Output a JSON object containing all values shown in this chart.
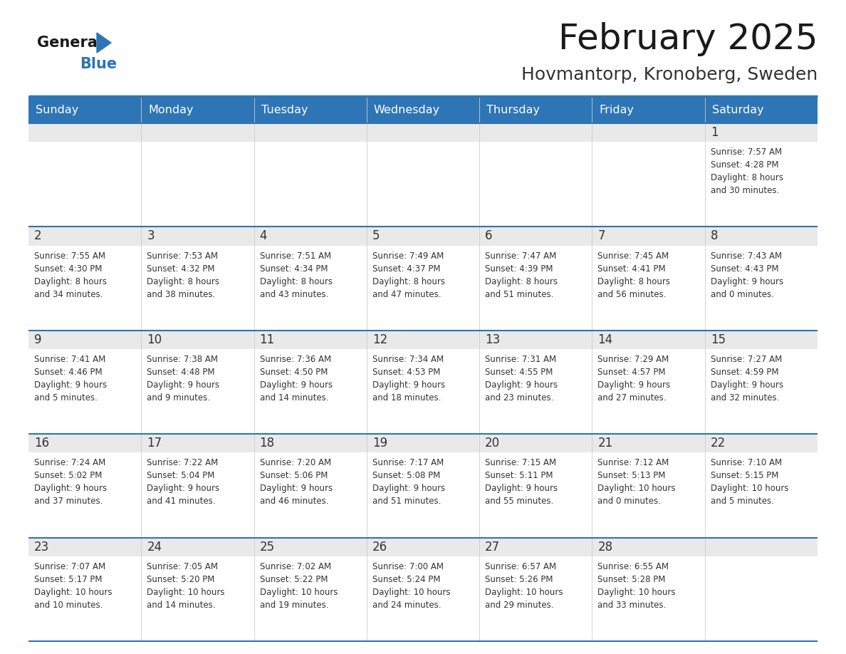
{
  "title": "February 2025",
  "subtitle": "Hovmantorp, Kronoberg, Sweden",
  "days_of_week": [
    "Sunday",
    "Monday",
    "Tuesday",
    "Wednesday",
    "Thursday",
    "Friday",
    "Saturday"
  ],
  "header_bg": "#2E75B6",
  "header_text": "#FFFFFF",
  "row_top_bg": "#E9E9E9",
  "cell_bg": "#FFFFFF",
  "border_color": "#2E75B6",
  "day_number_color": "#333333",
  "cell_text_color": "#333333",
  "title_color": "#1a1a1a",
  "subtitle_color": "#333333",
  "logo_general_color": "#1a1a1a",
  "logo_blue_color": "#2E75B6",
  "weeks": [
    [
      {
        "day": null,
        "info": null
      },
      {
        "day": null,
        "info": null
      },
      {
        "day": null,
        "info": null
      },
      {
        "day": null,
        "info": null
      },
      {
        "day": null,
        "info": null
      },
      {
        "day": null,
        "info": null
      },
      {
        "day": 1,
        "info": "Sunrise: 7:57 AM\nSunset: 4:28 PM\nDaylight: 8 hours\nand 30 minutes."
      }
    ],
    [
      {
        "day": 2,
        "info": "Sunrise: 7:55 AM\nSunset: 4:30 PM\nDaylight: 8 hours\nand 34 minutes."
      },
      {
        "day": 3,
        "info": "Sunrise: 7:53 AM\nSunset: 4:32 PM\nDaylight: 8 hours\nand 38 minutes."
      },
      {
        "day": 4,
        "info": "Sunrise: 7:51 AM\nSunset: 4:34 PM\nDaylight: 8 hours\nand 43 minutes."
      },
      {
        "day": 5,
        "info": "Sunrise: 7:49 AM\nSunset: 4:37 PM\nDaylight: 8 hours\nand 47 minutes."
      },
      {
        "day": 6,
        "info": "Sunrise: 7:47 AM\nSunset: 4:39 PM\nDaylight: 8 hours\nand 51 minutes."
      },
      {
        "day": 7,
        "info": "Sunrise: 7:45 AM\nSunset: 4:41 PM\nDaylight: 8 hours\nand 56 minutes."
      },
      {
        "day": 8,
        "info": "Sunrise: 7:43 AM\nSunset: 4:43 PM\nDaylight: 9 hours\nand 0 minutes."
      }
    ],
    [
      {
        "day": 9,
        "info": "Sunrise: 7:41 AM\nSunset: 4:46 PM\nDaylight: 9 hours\nand 5 minutes."
      },
      {
        "day": 10,
        "info": "Sunrise: 7:38 AM\nSunset: 4:48 PM\nDaylight: 9 hours\nand 9 minutes."
      },
      {
        "day": 11,
        "info": "Sunrise: 7:36 AM\nSunset: 4:50 PM\nDaylight: 9 hours\nand 14 minutes."
      },
      {
        "day": 12,
        "info": "Sunrise: 7:34 AM\nSunset: 4:53 PM\nDaylight: 9 hours\nand 18 minutes."
      },
      {
        "day": 13,
        "info": "Sunrise: 7:31 AM\nSunset: 4:55 PM\nDaylight: 9 hours\nand 23 minutes."
      },
      {
        "day": 14,
        "info": "Sunrise: 7:29 AM\nSunset: 4:57 PM\nDaylight: 9 hours\nand 27 minutes."
      },
      {
        "day": 15,
        "info": "Sunrise: 7:27 AM\nSunset: 4:59 PM\nDaylight: 9 hours\nand 32 minutes."
      }
    ],
    [
      {
        "day": 16,
        "info": "Sunrise: 7:24 AM\nSunset: 5:02 PM\nDaylight: 9 hours\nand 37 minutes."
      },
      {
        "day": 17,
        "info": "Sunrise: 7:22 AM\nSunset: 5:04 PM\nDaylight: 9 hours\nand 41 minutes."
      },
      {
        "day": 18,
        "info": "Sunrise: 7:20 AM\nSunset: 5:06 PM\nDaylight: 9 hours\nand 46 minutes."
      },
      {
        "day": 19,
        "info": "Sunrise: 7:17 AM\nSunset: 5:08 PM\nDaylight: 9 hours\nand 51 minutes."
      },
      {
        "day": 20,
        "info": "Sunrise: 7:15 AM\nSunset: 5:11 PM\nDaylight: 9 hours\nand 55 minutes."
      },
      {
        "day": 21,
        "info": "Sunrise: 7:12 AM\nSunset: 5:13 PM\nDaylight: 10 hours\nand 0 minutes."
      },
      {
        "day": 22,
        "info": "Sunrise: 7:10 AM\nSunset: 5:15 PM\nDaylight: 10 hours\nand 5 minutes."
      }
    ],
    [
      {
        "day": 23,
        "info": "Sunrise: 7:07 AM\nSunset: 5:17 PM\nDaylight: 10 hours\nand 10 minutes."
      },
      {
        "day": 24,
        "info": "Sunrise: 7:05 AM\nSunset: 5:20 PM\nDaylight: 10 hours\nand 14 minutes."
      },
      {
        "day": 25,
        "info": "Sunrise: 7:02 AM\nSunset: 5:22 PM\nDaylight: 10 hours\nand 19 minutes."
      },
      {
        "day": 26,
        "info": "Sunrise: 7:00 AM\nSunset: 5:24 PM\nDaylight: 10 hours\nand 24 minutes."
      },
      {
        "day": 27,
        "info": "Sunrise: 6:57 AM\nSunset: 5:26 PM\nDaylight: 10 hours\nand 29 minutes."
      },
      {
        "day": 28,
        "info": "Sunrise: 6:55 AM\nSunset: 5:28 PM\nDaylight: 10 hours\nand 33 minutes."
      },
      {
        "day": null,
        "info": null
      }
    ]
  ]
}
